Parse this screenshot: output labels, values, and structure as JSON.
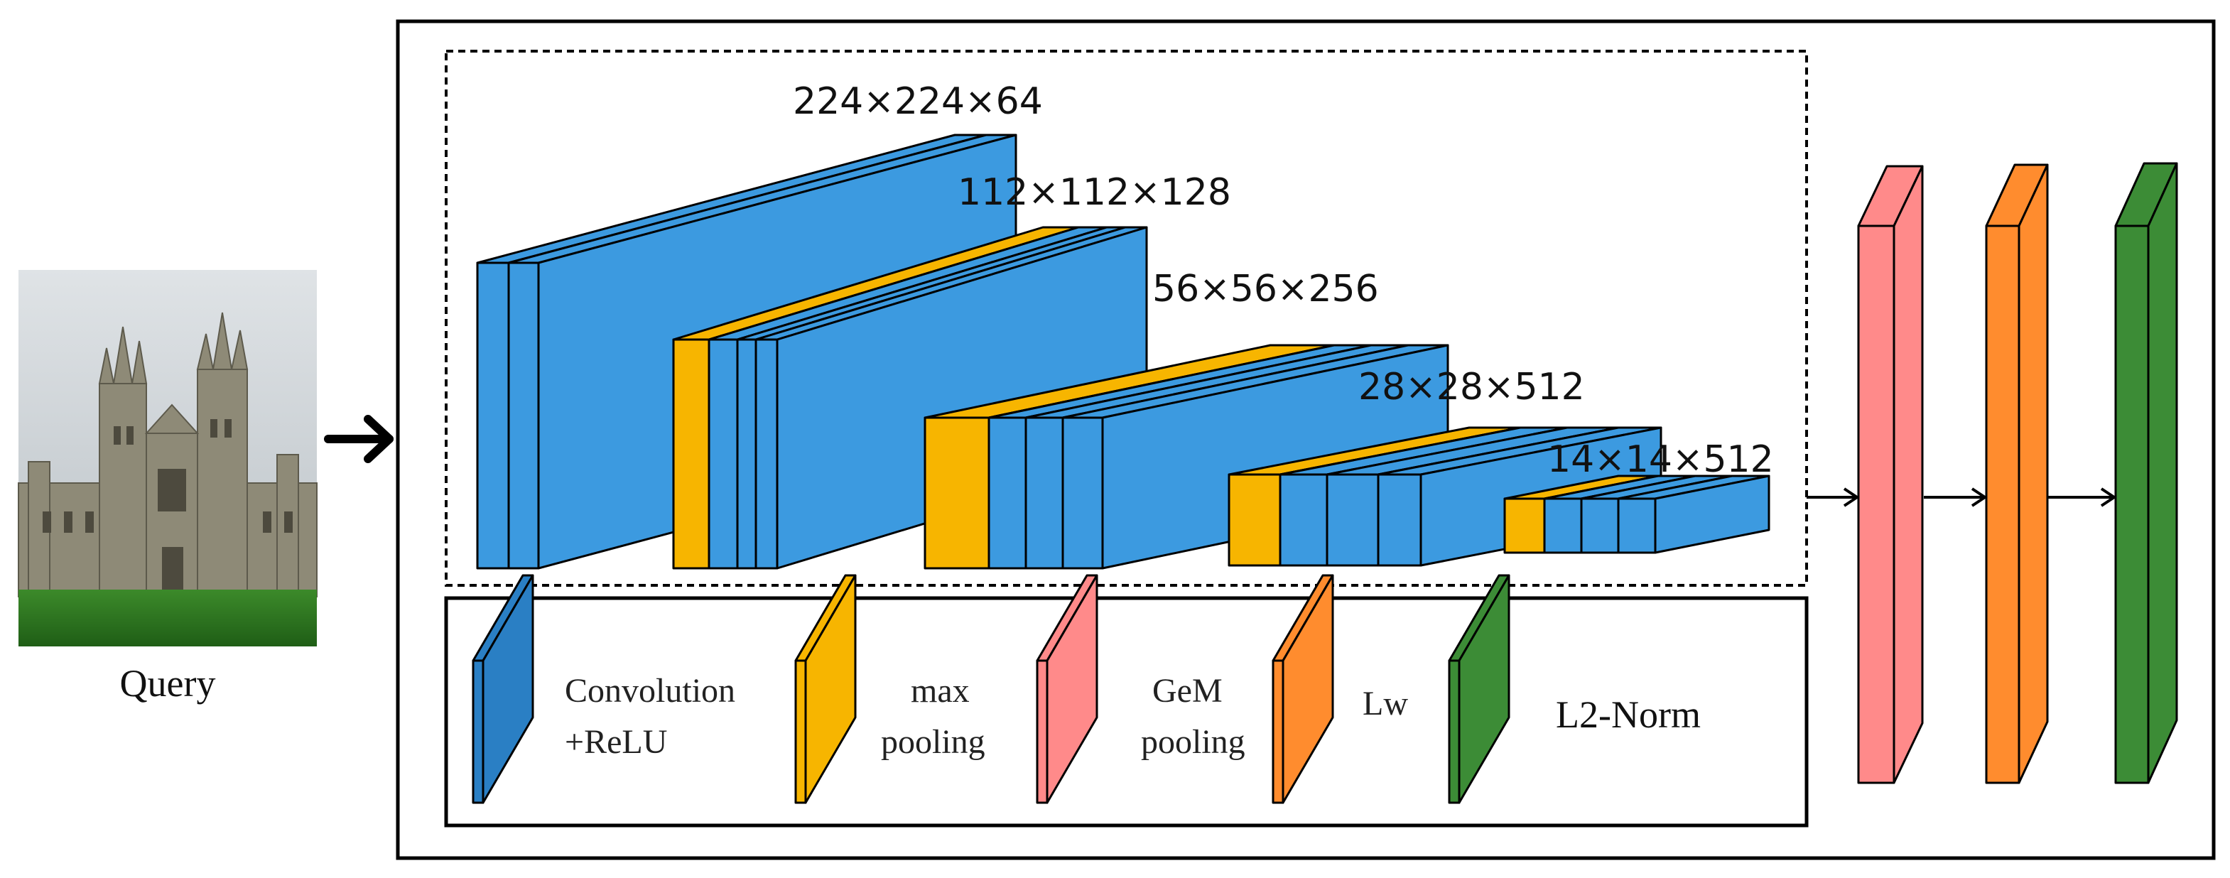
{
  "colors": {
    "conv": "#3c9ae0",
    "pool": "#f7b500",
    "gem": "#ff8a8a",
    "lw": "#ff8c2e",
    "l2": "#3c8c36",
    "legend_conv": "#2a7fc4",
    "edge": "#000000"
  },
  "query": {
    "label": "Query",
    "icon": "building-photo"
  },
  "backbone": {
    "stages": [
      {
        "dims": "224×224×64"
      },
      {
        "dims": "112×112×128"
      },
      {
        "dims": "56×56×256"
      },
      {
        "dims": "28×28×512"
      },
      {
        "dims": "14×14×512"
      }
    ]
  },
  "legend": {
    "items": [
      {
        "key": "conv",
        "line1": "Convolution",
        "line2": "+ReLU"
      },
      {
        "key": "pool",
        "line1": "max",
        "line2": "pooling"
      },
      {
        "key": "gem",
        "line1": "GeM",
        "line2": "pooling"
      },
      {
        "key": "lw",
        "line1": "Lw",
        "line2": ""
      },
      {
        "key": "l2",
        "line1": "L2-Norm",
        "line2": ""
      }
    ]
  }
}
